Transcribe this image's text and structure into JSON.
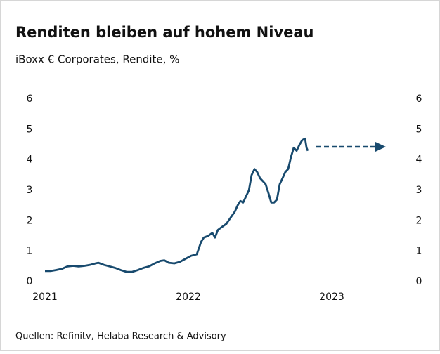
{
  "chart_data": {
    "type": "line",
    "title": "Renditen bleiben auf hohem Niveau",
    "subtitle": "iBoxx € Corporates, Rendite, %",
    "source": "Quellen: Refinitv, Helaba Research & Advisory",
    "x": [
      2021.0,
      2021.039,
      2021.078,
      2021.118,
      2021.157,
      2021.196,
      2021.235,
      2021.275,
      2021.314,
      2021.353,
      2021.373,
      2021.412,
      2021.451,
      2021.49,
      2021.529,
      2021.569,
      2021.608,
      2021.647,
      2021.686,
      2021.725,
      2021.765,
      2021.804,
      2021.833,
      2021.863,
      2021.902,
      2021.941,
      2021.98,
      2022.02,
      2022.059,
      2022.088,
      2022.108,
      2022.137,
      2022.167,
      2022.186,
      2022.206,
      2022.235,
      2022.265,
      2022.294,
      2022.324,
      2022.343,
      2022.363,
      2022.382,
      2022.402,
      2022.422,
      2022.441,
      2022.461,
      2022.48,
      2022.5,
      2022.52,
      2022.539,
      2022.559,
      2022.578,
      2022.598,
      2022.618,
      2022.637,
      2022.657,
      2022.676,
      2022.696,
      2022.716,
      2022.735,
      2022.755,
      2022.775,
      2022.794,
      2022.814,
      2022.824,
      2022.833
    ],
    "series": [
      {
        "color": "#184a6e",
        "values": [
          0.35,
          0.35,
          0.38,
          0.42,
          0.5,
          0.52,
          0.5,
          0.52,
          0.55,
          0.6,
          0.62,
          0.55,
          0.5,
          0.45,
          0.38,
          0.32,
          0.32,
          0.38,
          0.45,
          0.5,
          0.6,
          0.68,
          0.7,
          0.62,
          0.6,
          0.65,
          0.75,
          0.85,
          0.9,
          1.3,
          1.45,
          1.5,
          1.6,
          1.45,
          1.7,
          1.8,
          1.9,
          2.1,
          2.3,
          2.5,
          2.65,
          2.6,
          2.8,
          3.0,
          3.5,
          3.7,
          3.6,
          3.4,
          3.3,
          3.2,
          2.9,
          2.6,
          2.6,
          2.7,
          3.2,
          3.4,
          3.6,
          3.7,
          4.1,
          4.4,
          4.3,
          4.5,
          4.65,
          4.7,
          4.4,
          4.3
        ]
      }
    ],
    "xlim": [
      2021,
      2023.43
    ],
    "xticks": [
      2021,
      2022,
      2023
    ],
    "ylim": [
      0,
      6
    ],
    "yticks": [
      0,
      1,
      2,
      3,
      4,
      5,
      6
    ],
    "grid": false
  }
}
